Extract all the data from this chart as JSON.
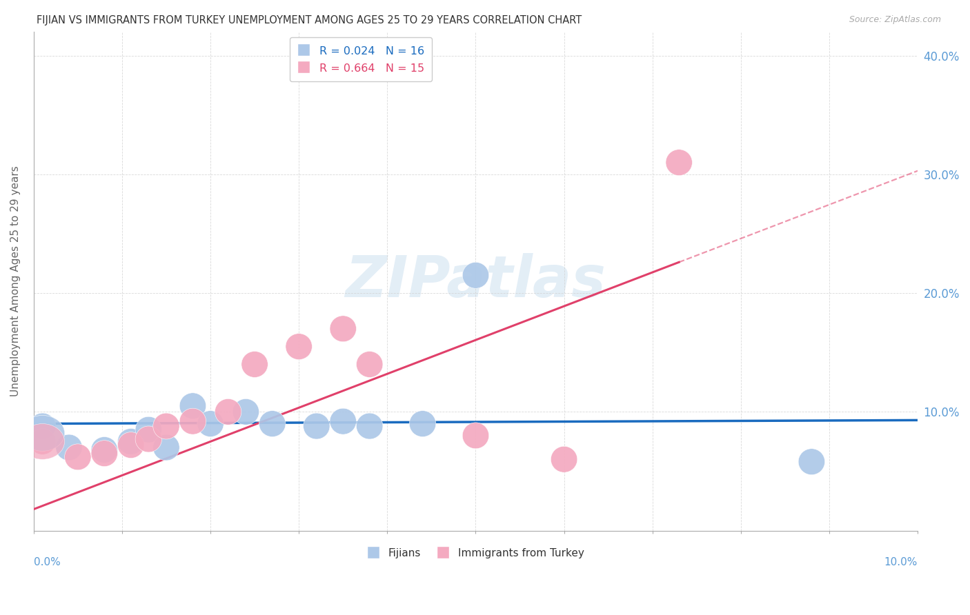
{
  "title": "FIJIAN VS IMMIGRANTS FROM TURKEY UNEMPLOYMENT AMONG AGES 25 TO 29 YEARS CORRELATION CHART",
  "source": "Source: ZipAtlas.com",
  "ylabel": "Unemployment Among Ages 25 to 29 years",
  "fijian_color": "#adc8e8",
  "turkey_color": "#f4aac0",
  "fijian_line_color": "#1a6bbf",
  "turkey_line_color": "#e0406a",
  "axis_color": "#5b9bd5",
  "grid_color": "#d3d3d3",
  "title_color": "#333333",
  "source_color": "#aaaaaa",
  "watermark_color": "#cce0f0",
  "fijian_x": [
    0.001,
    0.004,
    0.008,
    0.011,
    0.013,
    0.015,
    0.018,
    0.02,
    0.024,
    0.027,
    0.032,
    0.035,
    0.038,
    0.044,
    0.05,
    0.088
  ],
  "fijian_y": [
    0.088,
    0.07,
    0.068,
    0.075,
    0.085,
    0.07,
    0.105,
    0.09,
    0.1,
    0.09,
    0.088,
    0.092,
    0.088,
    0.09,
    0.215,
    0.058
  ],
  "turkey_x": [
    0.001,
    0.005,
    0.008,
    0.011,
    0.013,
    0.015,
    0.018,
    0.022,
    0.025,
    0.03,
    0.035,
    0.038,
    0.05,
    0.06,
    0.073
  ],
  "turkey_y": [
    0.075,
    0.062,
    0.065,
    0.072,
    0.077,
    0.088,
    0.092,
    0.1,
    0.14,
    0.155,
    0.17,
    0.14,
    0.08,
    0.06,
    0.31
  ],
  "fijian_slope": 0.03,
  "fijian_intercept": 0.09,
  "turkey_slope": 2.85,
  "turkey_intercept": 0.018,
  "xlim": [
    0.0,
    0.1
  ],
  "ylim": [
    0.0,
    0.42
  ],
  "fijian_R": 0.024,
  "fijian_N": 16,
  "turkey_R": 0.664,
  "turkey_N": 15
}
